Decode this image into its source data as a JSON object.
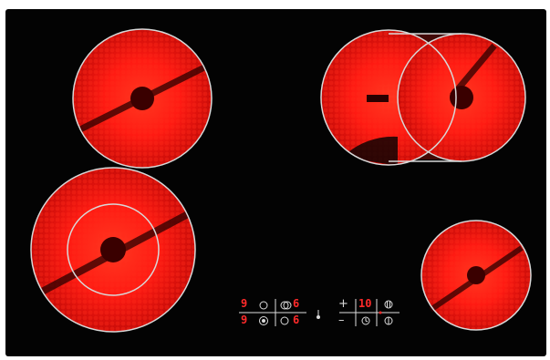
{
  "colors": {
    "panel": "#030303",
    "glow_hot": "#ff1a12",
    "glow_mid": "#e0100c",
    "ring": "#d8d8d8",
    "led": "#ff2a2a",
    "touch": "#dcdcdc"
  },
  "controls": {
    "left_top_level": "9",
    "left_top_right_level": "6",
    "left_bottom_level": "9",
    "left_bottom_right_level": "6",
    "timer_display": "10",
    "plus_label": "+",
    "minus_label": "–"
  },
  "icons": {
    "zone_ring_toggle": "circle-icon",
    "dual_zone_toggle": "double-circle-icon",
    "triple_ring": "target-icon",
    "timer": "clock-icon",
    "power": "power-icon",
    "lock": "lock-icon",
    "hot_indicator": "thermometer-icon"
  }
}
